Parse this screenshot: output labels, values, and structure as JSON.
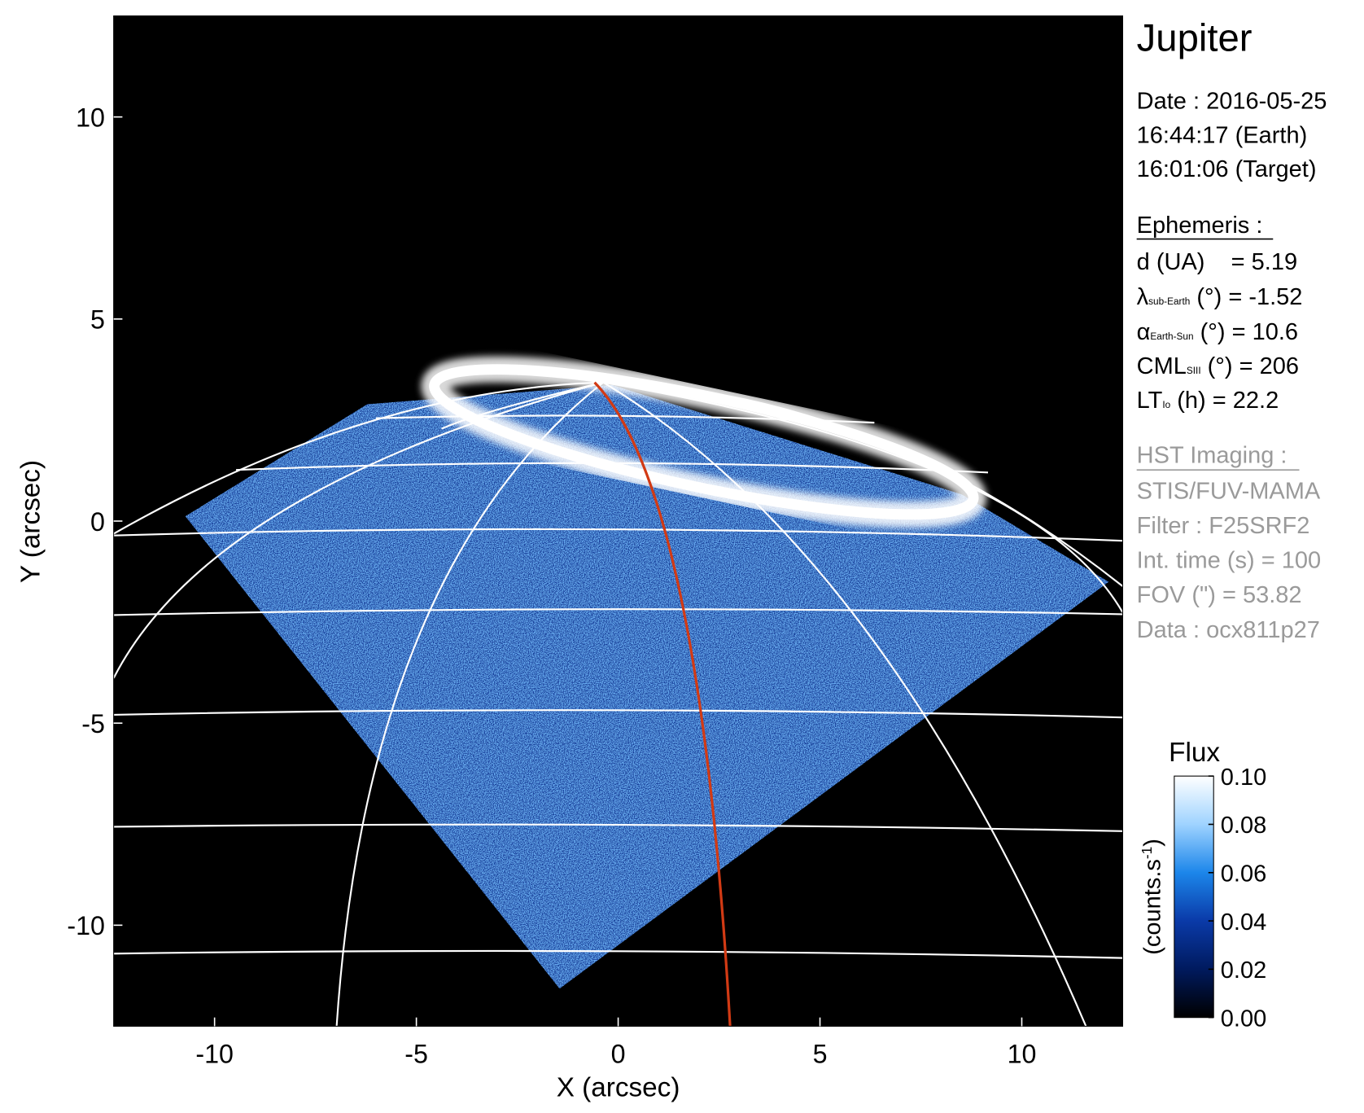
{
  "chart_data": {
    "type": "image",
    "xlabel": "X (arcsec)",
    "ylabel": "Y (arcsec)",
    "xlim": [
      -12.5,
      12.5
    ],
    "ylim": [
      -12.5,
      12.5
    ],
    "xticks": [
      -10,
      -5,
      0,
      5,
      10
    ],
    "yticks": [
      -10,
      -5,
      0,
      5,
      10
    ],
    "colorbar": {
      "title": "Flux",
      "label": [
        "(counts.s",
        "-1",
        ")"
      ],
      "clim": [
        0,
        0.1
      ],
      "ticks": [
        {
          "value": 0,
          "label": "0.00"
        },
        0.02,
        0.04,
        0.06,
        0.08,
        {
          "value": 0.1,
          "label": "0.10"
        }
      ],
      "colormap": [
        "#000000",
        "#001a5e",
        "#0a3aa8",
        "#1c86ea",
        "#9fd3ff",
        "#ffffff"
      ]
    }
  },
  "info": {
    "title": "Jupiter",
    "date": [
      "Date : 2016-05-25",
      "16:44:17 (Earth)",
      "16:01:06 (Target)"
    ],
    "ephemeris": {
      "heading": "Ephemeris :",
      "distance": "d (UA)    = 5.19",
      "latitude": [
        "λ",
        "sub-Earth",
        " (°) = -1.52"
      ],
      "phase": [
        "α",
        "Earth-Sun",
        " (°) = 10.6"
      ],
      "cml": [
        "CML",
        "SIII",
        " (°) = 206"
      ],
      "local_time": [
        "LT",
        "Io",
        " (h) = 22.2"
      ]
    },
    "observation": {
      "heading": "HST Imaging :",
      "lines": [
        "STIS/FUV-MAMA",
        "Filter : F25SRF2",
        "Int. time (s) = 100",
        "FOV (\") = 53.82",
        "Data : ocx811p27"
      ]
    }
  }
}
